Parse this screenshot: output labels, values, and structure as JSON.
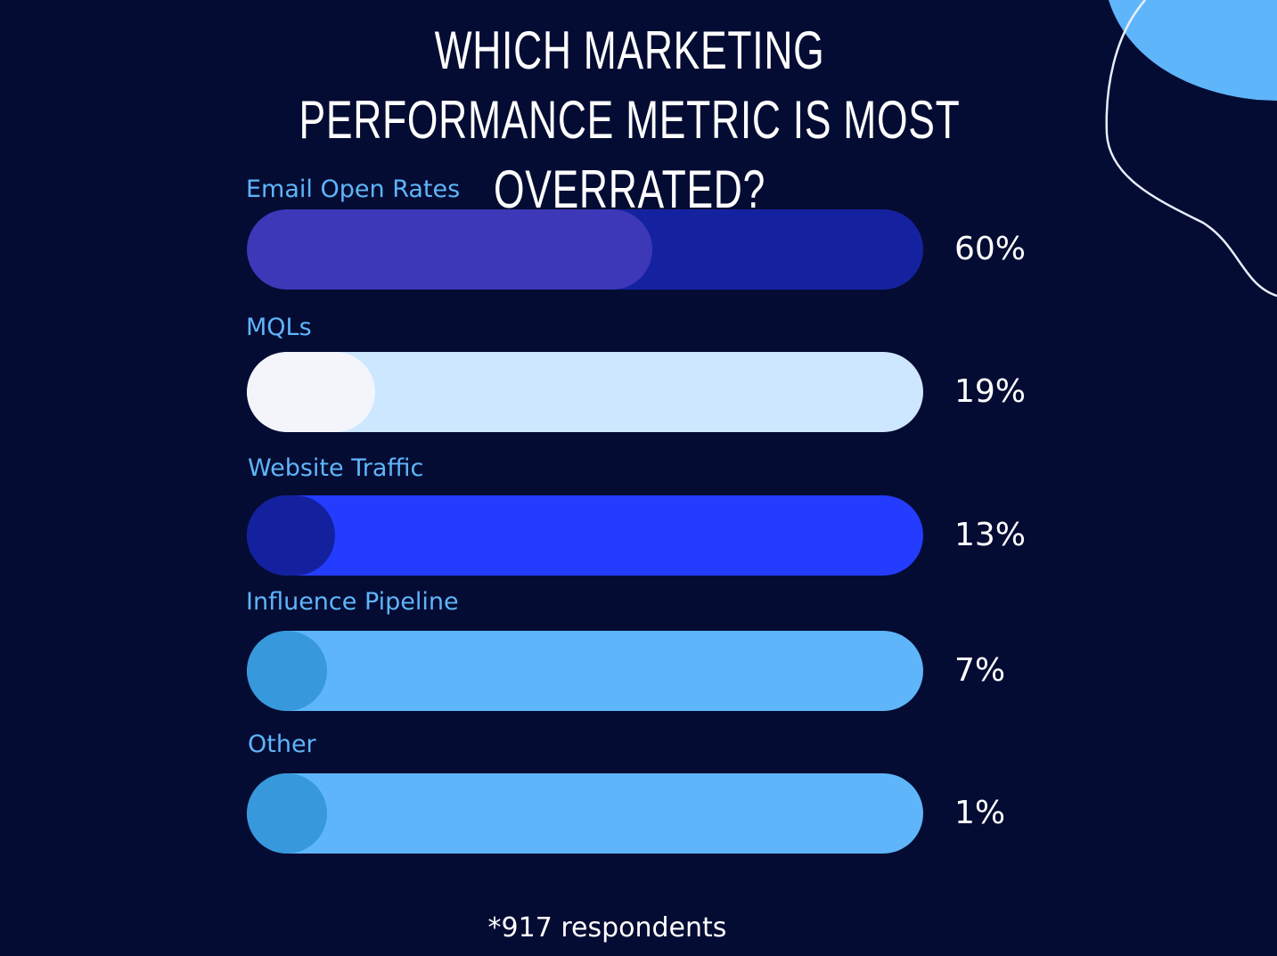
{
  "chart_data": {
    "type": "bar",
    "orientation": "horizontal",
    "title": "WHICH MARKETING PERFORMANCE METRIC IS MOST OVERRATED?",
    "categories": [
      "Email Open Rates",
      "MQLs",
      "Website Traffic",
      "Influence Pipeline",
      "Other"
    ],
    "values": [
      60,
      19,
      13,
      7,
      1
    ],
    "value_labels": [
      "60%",
      "19%",
      "13%",
      "7%",
      "1%"
    ],
    "unit": "%",
    "ylim": [
      0,
      100
    ],
    "colors": [
      {
        "track": "#1522a0",
        "fill": "#3c38b8"
      },
      {
        "track": "#cde7ff",
        "fill": "#f3f5fb"
      },
      {
        "track": "#233cff",
        "fill": "#13219e"
      },
      {
        "track": "#5fb5fa",
        "fill": "#3798dc"
      },
      {
        "track": "#5fb5fa",
        "fill": "#3798dc"
      }
    ],
    "grid": false,
    "legend": "none"
  },
  "footnote": "*917 respondents",
  "theme": {
    "background": "#050c33",
    "label_color": "#5fb5fa",
    "value_color": "#ffffff",
    "accent_blob": "#5fb5fa"
  }
}
